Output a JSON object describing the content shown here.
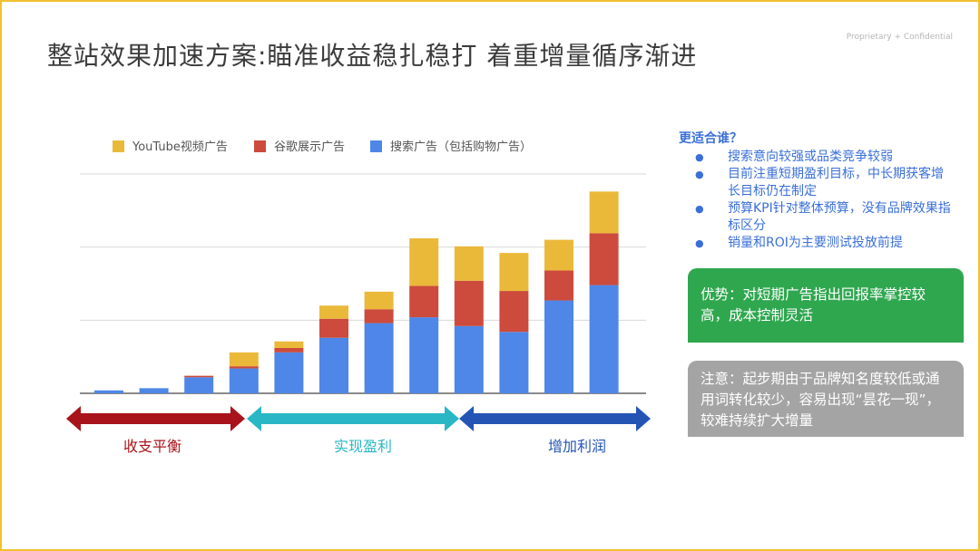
{
  "slide": {
    "title": "整站效果加速方案:瞄准收益稳扎稳打 着重增量循序渐进",
    "confidential": "Proprietary + Confidential"
  },
  "colors": {
    "border": "#f2c12e",
    "youtube": "#ebb93a",
    "display": "#cc4b3c",
    "search": "#4e87e8",
    "phase1": "#a8141b",
    "phase2": "#29b7c6",
    "phase3": "#2455b5",
    "green_box": "#2fa74f",
    "gray_box": "#a4a4a4"
  },
  "chart_data": {
    "type": "bar",
    "stacked": true,
    "categories": [
      "",
      "",
      "",
      "",
      "",
      "",
      "",
      "",
      "",
      "",
      "",
      ""
    ],
    "series": [
      {
        "name": "搜索广告（包括购物广告）",
        "color": "#4e87e8",
        "values": [
          4,
          7,
          22,
          34,
          56,
          76,
          96,
          104,
          92,
          84,
          127,
          148
        ]
      },
      {
        "name": "谷歌展示广告",
        "color": "#cc4b3c",
        "values": [
          0,
          0,
          2,
          3,
          6,
          26,
          19,
          43,
          62,
          56,
          41,
          71
        ]
      },
      {
        "name": "YouTube视频广告",
        "color": "#ebb93a",
        "values": [
          0,
          0,
          0,
          19,
          9,
          18,
          24,
          65,
          47,
          52,
          42,
          57
        ]
      }
    ],
    "legend": [
      "YouTube视频广告",
      "谷歌展示广告",
      "搜索广告（包括购物广告）"
    ],
    "legend_position": "top",
    "ylim": [
      0,
      300
    ],
    "gridlines": [
      100,
      200,
      300
    ],
    "grid": true,
    "xlabel": "",
    "ylabel": ""
  },
  "phases": [
    {
      "label": "收支平衡",
      "color": "#a8141b"
    },
    {
      "label": "实现盈利",
      "color": "#29b7c6"
    },
    {
      "label": "增加利润",
      "color": "#2455b5"
    }
  ],
  "fit": {
    "title": "更适合谁？",
    "bullet": "●",
    "items": [
      "搜索意向较强或品类竞争较弱",
      "目前注重短期盈利目标，中长期获客增长目标仍在制定",
      "预算KPI针对整体预算，没有品牌效果指标区分",
      "销量和ROI为主要测试投放前提"
    ]
  },
  "advantage": "优势：对短期广告指出回报率掌控较高，成本控制灵活",
  "caution": "注意：起步期由于品牌知名度较低或通用词转化较少，容易出现“昙花一现”，较难持续扩大增量"
}
